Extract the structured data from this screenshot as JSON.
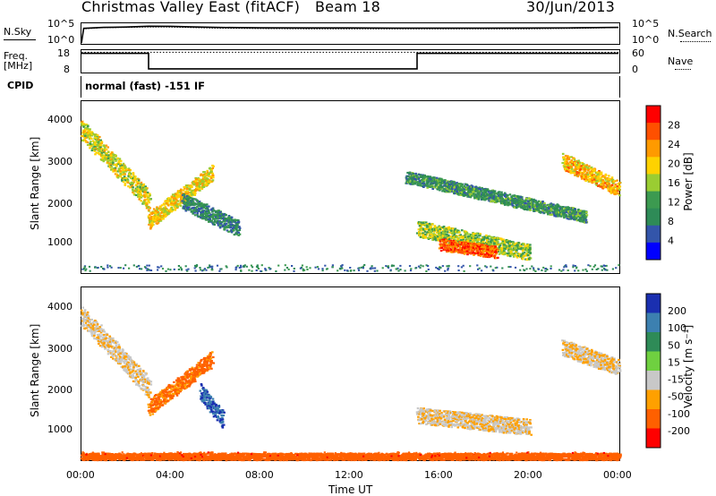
{
  "header": {
    "title": "Christmas Valley East (fitACF)",
    "beam": "Beam 18",
    "date": "30/Jun/2013"
  },
  "noise_panel": {
    "left_label": "N.Sky",
    "right_label": "N.Search",
    "left_ticks": [
      "10^5",
      "10^0"
    ],
    "right_ticks": [
      "10^5",
      "10^0"
    ]
  },
  "freq_panel": {
    "left_label_1": "Freq.",
    "left_label_2": "[MHz]",
    "right_label": "Nave",
    "left_ticks": [
      "18",
      "8"
    ],
    "right_ticks": [
      "60",
      "0"
    ]
  },
  "cpid": {
    "label": "CPID",
    "text": "normal (fast) -151 IF"
  },
  "x_axis": {
    "label": "Time UT",
    "ticks": [
      "00:00",
      "04:00",
      "08:00",
      "12:00",
      "16:00",
      "20:00",
      "00:00"
    ]
  },
  "power_panel": {
    "ylabel": "Slant Range [km]",
    "yticks": [
      "4000",
      "3000",
      "2000",
      "1000"
    ],
    "colorbar_label": "Power [dB]",
    "colorbar_ticks": [
      "28",
      "24",
      "20",
      "16",
      "12",
      "8",
      "4"
    ],
    "colorbar_colors": [
      "#ff0000",
      "#ff5000",
      "#ff9a00",
      "#ffd200",
      "#9acd32",
      "#3c9a50",
      "#2e8b57",
      "#3355aa",
      "#0000ff"
    ]
  },
  "velocity_panel": {
    "ylabel": "Slant Range [km]",
    "yticks": [
      "4000",
      "3000",
      "2000",
      "1000"
    ],
    "colorbar_label": "Velocity [m s⁻¹]",
    "colorbar_ticks": [
      "200",
      "100",
      "50",
      "15",
      "-15",
      "-50",
      "-100",
      "-200"
    ],
    "colorbar_colors": [
      "#1a2fb0",
      "#3c80b0",
      "#2e8b57",
      "#6fd040",
      "#c8c8c8",
      "#ffa000",
      "#ff6000",
      "#ff0000"
    ]
  },
  "chart_data": [
    {
      "type": "line",
      "title": "",
      "xlabel": "Time UT",
      "ylabel": "N.Sky",
      "xlim": [
        0,
        24
      ],
      "yscale": "log",
      "series": [
        {
          "name": "N.Sky",
          "x": [
            0,
            0.1,
            1,
            2,
            3,
            4,
            5,
            6,
            8,
            10,
            12,
            14,
            16,
            18,
            20,
            22,
            24
          ],
          "y": [
            1,
            5000,
            9000,
            11000,
            18000,
            17000,
            12000,
            9000,
            7000,
            6500,
            6500,
            6000,
            6000,
            6000,
            6200,
            7000,
            9000
          ]
        },
        {
          "name": "N.Search",
          "x": [
            0,
            0.1,
            1,
            2,
            3,
            4,
            5,
            6,
            8,
            10,
            12,
            14,
            16,
            18,
            20,
            22,
            24
          ],
          "y": [
            1,
            4000,
            8000,
            9000,
            12000,
            11000,
            8000,
            6000,
            4500,
            4000,
            4000,
            3800,
            3800,
            3800,
            4000,
            5000,
            8000
          ]
        }
      ]
    },
    {
      "type": "line",
      "title": "",
      "xlabel": "Time UT",
      "ylabel": "Freq. [MHz]",
      "xlim": [
        0,
        24
      ],
      "ylim": [
        8,
        18
      ],
      "series": [
        {
          "name": "Freq.",
          "x": [
            0,
            3,
            3,
            15,
            15,
            24
          ],
          "y": [
            16.5,
            16.5,
            9.3,
            9.3,
            16.5,
            16.5
          ]
        },
        {
          "name": "Nave",
          "x": [
            0,
            24
          ],
          "y": [
            17,
            17
          ]
        }
      ]
    },
    {
      "type": "heatmap",
      "title": "",
      "xlabel": "Time UT",
      "ylabel": "Slant Range [km]",
      "colorbar_label": "Power [dB]",
      "xlim": [
        0,
        24
      ],
      "ylim": [
        180,
        4500
      ],
      "zlim": [
        0,
        30
      ],
      "features": [
        {
          "t0": 0.0,
          "t1": 3.0,
          "r_start": 3800,
          "r_end": 2000,
          "width": 500,
          "power": 16
        },
        {
          "t0": 3.0,
          "t1": 5.8,
          "r_start": 1500,
          "r_end": 2700,
          "width": 400,
          "power": 18
        },
        {
          "t0": 4.5,
          "t1": 7.0,
          "r_start": 2000,
          "r_end": 1300,
          "width": 400,
          "power": 6
        },
        {
          "t0": 14.5,
          "t1": 22.5,
          "r_start": 2600,
          "r_end": 1600,
          "width": 300,
          "power": 8
        },
        {
          "t0": 15.0,
          "t1": 20.0,
          "r_start": 1300,
          "r_end": 700,
          "width": 400,
          "power": 14
        },
        {
          "t0": 16.0,
          "t1": 18.5,
          "r_start": 900,
          "r_end": 700,
          "width": 300,
          "power": 26
        },
        {
          "t0": 21.5,
          "t1": 24.0,
          "r_start": 3000,
          "r_end": 2300,
          "width": 400,
          "power": 20
        }
      ]
    },
    {
      "type": "heatmap",
      "title": "",
      "xlabel": "Time UT",
      "ylabel": "Slant Range [km]",
      "colorbar_label": "Velocity [m s⁻¹]",
      "xlim": [
        0,
        24
      ],
      "ylim": [
        180,
        4500
      ],
      "zlim": [
        -200,
        200
      ],
      "features": [
        {
          "t0": 0.0,
          "t1": 3.0,
          "r_start": 3800,
          "r_end": 2000,
          "width": 500,
          "velocity": -10
        },
        {
          "t0": 3.0,
          "t1": 5.8,
          "r_start": 1500,
          "r_end": 2700,
          "width": 400,
          "velocity": -60
        },
        {
          "t0": 5.3,
          "t1": 6.3,
          "r_start": 1900,
          "r_end": 1200,
          "width": 400,
          "velocity": 200
        },
        {
          "t0": 15.0,
          "t1": 20.0,
          "r_start": 1300,
          "r_end": 1000,
          "width": 400,
          "velocity": -10
        },
        {
          "t0": 0.0,
          "t1": 24.0,
          "r_start": 250,
          "r_end": 250,
          "width": 200,
          "velocity": -70
        },
        {
          "t0": 21.5,
          "t1": 24.0,
          "r_start": 3000,
          "r_end": 2500,
          "width": 400,
          "velocity": -10
        }
      ]
    }
  ]
}
